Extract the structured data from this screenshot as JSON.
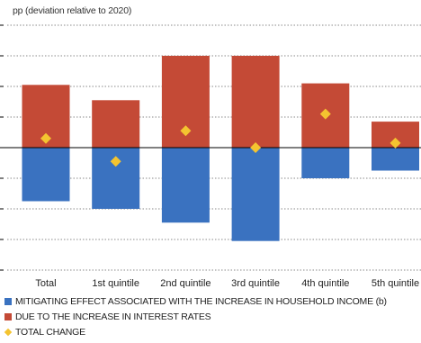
{
  "unit_label": "pp (deviation relative to 2020)",
  "chart_data": {
    "type": "bar",
    "stacked": true,
    "categories": [
      "Total",
      "1st quintile",
      "2nd quintile",
      "3rd quintile",
      "4th quintile",
      "5th quintile"
    ],
    "series": [
      {
        "name": "MITIGATING EFFECT ASSOCIATED WITH THE INCREASE IN HOUSEHOLD INCOME (b)",
        "kind": "bar",
        "color": "#3a72c0",
        "values": [
          -3.5,
          -4.0,
          -4.9,
          -6.1,
          -2.0,
          -1.5
        ]
      },
      {
        "name": "DUE TO THE INCREASE IN INTEREST RATES",
        "kind": "bar",
        "color": "#c44a36",
        "values": [
          4.1,
          3.1,
          6.0,
          6.0,
          4.2,
          1.7
        ]
      },
      {
        "name": "TOTAL CHANGE",
        "kind": "marker",
        "color": "#f4c430",
        "values": [
          0.6,
          -0.9,
          1.1,
          0.0,
          2.2,
          0.3
        ]
      }
    ],
    "ylim": [
      -8,
      8
    ],
    "grid": true,
    "legend_position": "bottom"
  }
}
